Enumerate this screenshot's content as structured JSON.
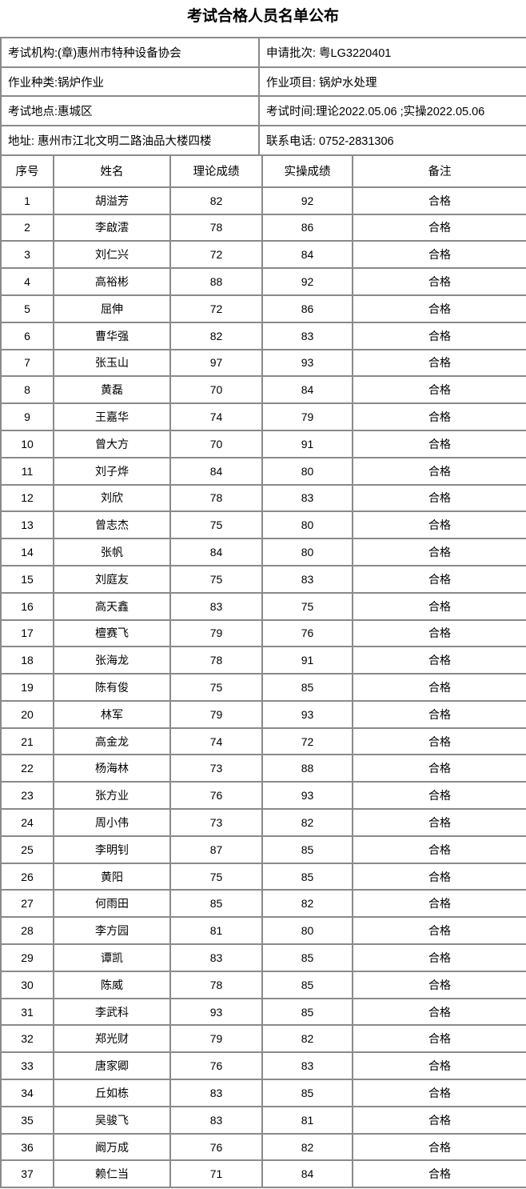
{
  "title": "考试合格人员名单公布",
  "info_rows": [
    {
      "left": "考试机构:(章)惠州市特种设备协会",
      "right": "申请批次: 粤LG3220401"
    },
    {
      "left": "作业种类:锅炉作业",
      "right": "作业项目: 锅炉水处理"
    },
    {
      "left": "考试地点:惠城区",
      "right": "考试时间:理论2022.05.06 ;实操2022.05.06"
    },
    {
      "left": "地址: 惠州市江北文明二路油品大楼四楼",
      "right": "联系电话: 0752-2831306"
    }
  ],
  "table": {
    "headers": [
      "序号",
      "姓名",
      "理论成绩",
      "实操成绩",
      "备注"
    ],
    "rows": [
      [
        "1",
        "胡溢芳",
        "82",
        "92",
        "合格"
      ],
      [
        "2",
        "李啟澐",
        "78",
        "86",
        "合格"
      ],
      [
        "3",
        "刘仁兴",
        "72",
        "84",
        "合格"
      ],
      [
        "4",
        "高裕彬",
        "88",
        "92",
        "合格"
      ],
      [
        "5",
        "屈伸",
        "72",
        "86",
        "合格"
      ],
      [
        "6",
        "曹华强",
        "82",
        "83",
        "合格"
      ],
      [
        "7",
        "张玉山",
        "97",
        "93",
        "合格"
      ],
      [
        "8",
        "黄磊",
        "70",
        "84",
        "合格"
      ],
      [
        "9",
        "王嘉华",
        "74",
        "79",
        "合格"
      ],
      [
        "10",
        "曾大方",
        "70",
        "91",
        "合格"
      ],
      [
        "11",
        "刘子烨",
        "84",
        "80",
        "合格"
      ],
      [
        "12",
        "刘欣",
        "78",
        "83",
        "合格"
      ],
      [
        "13",
        "曾志杰",
        "75",
        "80",
        "合格"
      ],
      [
        "14",
        "张帆",
        "84",
        "80",
        "合格"
      ],
      [
        "15",
        "刘庭友",
        "75",
        "83",
        "合格"
      ],
      [
        "16",
        "高天鑫",
        "83",
        "75",
        "合格"
      ],
      [
        "17",
        "檀赛飞",
        "79",
        "76",
        "合格"
      ],
      [
        "18",
        "张海龙",
        "78",
        "91",
        "合格"
      ],
      [
        "19",
        "陈有俊",
        "75",
        "85",
        "合格"
      ],
      [
        "20",
        "林军",
        "79",
        "93",
        "合格"
      ],
      [
        "21",
        "高金龙",
        "74",
        "72",
        "合格"
      ],
      [
        "22",
        "杨海林",
        "73",
        "88",
        "合格"
      ],
      [
        "23",
        "张方业",
        "76",
        "93",
        "合格"
      ],
      [
        "24",
        "周小伟",
        "73",
        "82",
        "合格"
      ],
      [
        "25",
        "李明钊",
        "87",
        "85",
        "合格"
      ],
      [
        "26",
        "黄阳",
        "75",
        "85",
        "合格"
      ],
      [
        "27",
        "何雨田",
        "85",
        "82",
        "合格"
      ],
      [
        "28",
        "李方园",
        "81",
        "80",
        "合格"
      ],
      [
        "29",
        "谭凯",
        "83",
        "85",
        "合格"
      ],
      [
        "30",
        "陈威",
        "78",
        "85",
        "合格"
      ],
      [
        "31",
        "李武科",
        "93",
        "85",
        "合格"
      ],
      [
        "32",
        "郑光财",
        "79",
        "82",
        "合格"
      ],
      [
        "33",
        "唐家卿",
        "76",
        "83",
        "合格"
      ],
      [
        "34",
        "丘如栋",
        "83",
        "85",
        "合格"
      ],
      [
        "35",
        "吴骏飞",
        "83",
        "81",
        "合格"
      ],
      [
        "36",
        "阚万成",
        "76",
        "82",
        "合格"
      ],
      [
        "37",
        "赖仁当",
        "71",
        "84",
        "合格"
      ]
    ]
  }
}
